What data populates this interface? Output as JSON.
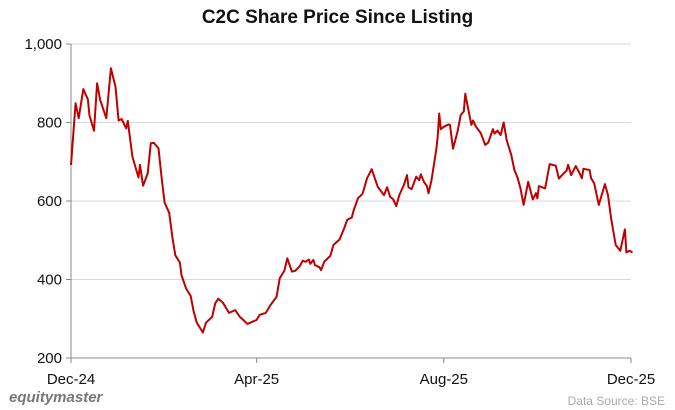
{
  "chart_data": {
    "type": "line",
    "title": "C2C Share Price Since Listing",
    "xlabel": "",
    "ylabel": "",
    "xlim": [
      "2024-12-01",
      "2025-12-01"
    ],
    "ylim": [
      200,
      1000
    ],
    "x_ticks": [
      {
        "date": "2024-12-01",
        "label": "Dec-24"
      },
      {
        "date": "2025-04-01",
        "label": "Apr-25"
      },
      {
        "date": "2025-08-01",
        "label": "Aug-25"
      },
      {
        "date": "2025-12-01",
        "label": "Dec-25"
      }
    ],
    "y_ticks": [
      {
        "value": 200,
        "label": "200"
      },
      {
        "value": 400,
        "label": "400"
      },
      {
        "value": 600,
        "label": "600"
      },
      {
        "value": 800,
        "label": "800"
      },
      {
        "value": 1000,
        "label": "1,000"
      }
    ],
    "grid": "horizontal",
    "line_color": "#c00000",
    "series": [
      {
        "x": [
          "2024-12-01",
          "2024-12-04",
          "2024-12-06",
          "2024-12-09",
          "2024-12-12",
          "2024-12-13",
          "2024-12-16",
          "2024-12-18",
          "2024-12-20",
          "2024-12-24",
          "2024-12-27",
          "2024-12-30",
          "2025-01-01",
          "2025-01-03",
          "2025-01-06",
          "2025-01-07",
          "2025-01-10",
          "2025-01-14",
          "2025-01-15",
          "2025-01-17",
          "2025-01-20",
          "2025-01-22",
          "2025-01-24",
          "2025-01-27",
          "2025-01-29",
          "2025-01-31",
          "2025-02-03",
          "2025-02-05",
          "2025-02-07",
          "2025-02-10",
          "2025-02-11",
          "2025-02-14",
          "2025-02-17",
          "2025-02-19",
          "2025-02-21",
          "2025-02-25",
          "2025-02-27",
          "2025-03-03",
          "2025-03-05",
          "2025-03-07",
          "2025-03-10",
          "2025-03-14",
          "2025-03-18",
          "2025-03-21",
          "2025-03-23",
          "2025-03-26",
          "2025-03-29",
          "2025-04-01",
          "2025-04-03",
          "2025-04-07",
          "2025-04-10",
          "2025-04-14",
          "2025-04-16",
          "2025-04-19",
          "2025-04-21",
          "2025-04-24",
          "2025-04-26",
          "2025-04-29",
          "2025-05-01",
          "2025-05-03",
          "2025-05-05",
          "2025-05-06",
          "2025-05-08",
          "2025-05-09",
          "2025-05-12",
          "2025-05-13",
          "2025-05-15",
          "2025-05-19",
          "2025-05-21",
          "2025-05-25",
          "2025-05-28",
          "2025-05-30",
          "2025-06-02",
          "2025-06-03",
          "2025-06-06",
          "2025-06-09",
          "2025-06-12",
          "2025-06-15",
          "2025-06-19",
          "2025-06-23",
          "2025-06-25",
          "2025-06-27",
          "2025-06-29",
          "2025-07-01",
          "2025-07-03",
          "2025-07-06",
          "2025-07-08",
          "2025-07-09",
          "2025-07-11",
          "2025-07-14",
          "2025-07-16",
          "2025-07-17",
          "2025-07-19",
          "2025-07-21",
          "2025-07-22",
          "2025-07-24",
          "2025-07-27",
          "2025-07-28",
          "2025-07-29",
          "2025-07-30",
          "2025-08-01",
          "2025-08-04",
          "2025-08-05",
          "2025-08-07",
          "2025-08-10",
          "2025-08-12",
          "2025-08-14",
          "2025-08-15",
          "2025-08-17",
          "2025-08-19",
          "2025-08-20",
          "2025-08-22",
          "2025-08-25",
          "2025-08-28",
          "2025-08-30",
          "2025-09-02",
          "2025-09-03",
          "2025-09-05",
          "2025-09-07",
          "2025-09-09",
          "2025-09-11",
          "2025-09-14",
          "2025-09-16",
          "2025-09-18",
          "2025-09-20",
          "2025-09-22",
          "2025-09-25",
          "2025-09-28",
          "2025-09-30",
          "2025-10-01",
          "2025-10-02",
          "2025-10-06",
          "2025-10-09",
          "2025-10-13",
          "2025-10-15",
          "2025-10-18",
          "2025-10-20",
          "2025-10-21",
          "2025-10-23",
          "2025-10-26",
          "2025-10-28",
          "2025-10-30",
          "2025-10-31",
          "2025-11-04",
          "2025-11-05",
          "2025-11-07",
          "2025-11-10",
          "2025-11-14",
          "2025-11-16",
          "2025-11-18",
          "2025-11-21",
          "2025-11-24",
          "2025-11-27",
          "2025-11-28",
          "2025-11-30",
          "2025-12-02"
        ],
        "values": [
          692,
          849,
          811,
          885,
          859,
          819,
          779,
          900,
          857,
          811,
          938,
          891,
          805,
          809,
          785,
          804,
          713,
          660,
          692,
          639,
          670,
          747,
          748,
          734,
          662,
          596,
          570,
          509,
          462,
          443,
          411,
          377,
          358,
          318,
          290,
          265,
          290,
          305,
          339,
          351,
          341,
          315,
          322,
          305,
          298,
          287,
          292,
          297,
          310,
          315,
          335,
          356,
          403,
          422,
          454,
          420,
          422,
          433,
          448,
          445,
          451,
          440,
          450,
          437,
          431,
          424,
          445,
          460,
          488,
          502,
          530,
          552,
          558,
          573,
          607,
          618,
          658,
          681,
          636,
          615,
          635,
          611,
          604,
          587,
          615,
          641,
          666,
          635,
          630,
          662,
          653,
          668,
          649,
          638,
          620,
          653,
          730,
          764,
          823,
          783,
          789,
          795,
          794,
          733,
          777,
          819,
          828,
          873,
          832,
          794,
          805,
          789,
          774,
          743,
          749,
          783,
          772,
          779,
          768,
          800,
          755,
          717,
          679,
          660,
          632,
          590,
          649,
          604,
          620,
          607,
          638,
          632,
          694,
          690,
          657,
          670,
          677,
          692,
          666,
          689,
          675,
          658,
          682,
          679,
          658,
          645,
          590,
          643,
          615,
          556,
          488,
          473,
          528,
          469,
          473,
          469
        ]
      }
    ]
  },
  "footer": {
    "brand": "equitymaster",
    "source": "Data Source: BSE"
  }
}
